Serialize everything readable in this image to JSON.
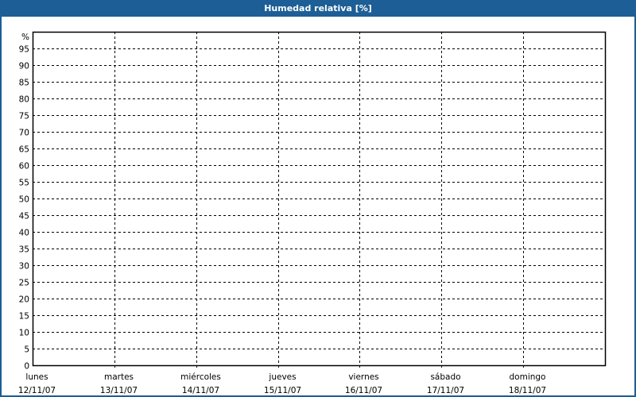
{
  "window": {
    "title": "Humedad relativa [%]"
  },
  "colors": {
    "titlebar": "#1d5e96",
    "background": "#ffffff",
    "grid": "#000000"
  },
  "chart_data": {
    "type": "line",
    "title": "Humedad relativa [%]",
    "ylabel": "%",
    "ylim": [
      0,
      100
    ],
    "yticks": [
      0,
      5,
      10,
      15,
      20,
      25,
      30,
      35,
      40,
      45,
      50,
      55,
      60,
      65,
      70,
      75,
      80,
      85,
      90,
      95
    ],
    "xlim_days": [
      0,
      7
    ],
    "xticks": [
      {
        "day": "lunes",
        "date": "12/11/07"
      },
      {
        "day": "martes",
        "date": "13/11/07"
      },
      {
        "day": "miércoles",
        "date": "14/11/07"
      },
      {
        "day": "jueves",
        "date": "15/11/07"
      },
      {
        "day": "viernes",
        "date": "16/11/07"
      },
      {
        "day": "sábado",
        "date": "17/11/07"
      },
      {
        "day": "domingo",
        "date": "18/11/07"
      }
    ],
    "grid": true,
    "grid_style": "dashed",
    "series": []
  }
}
